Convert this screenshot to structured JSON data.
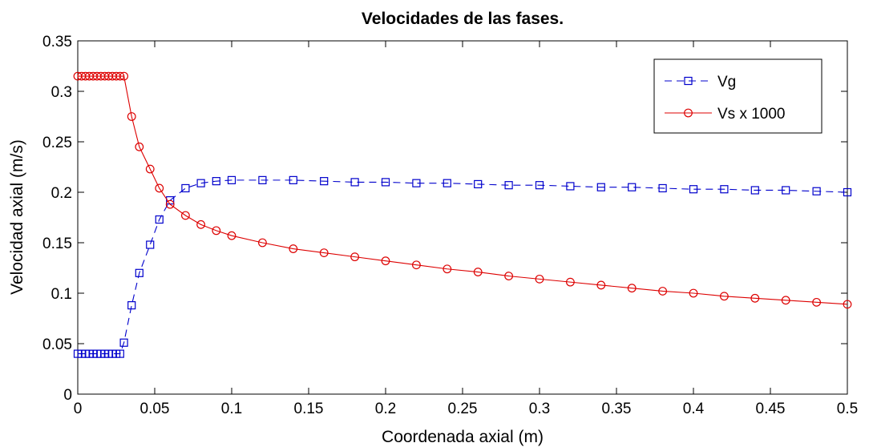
{
  "chart_data": {
    "type": "line",
    "title": "Velocidades de las fases.",
    "xlabel": "Coordenada axial (m)",
    "ylabel": "Velocidad axial (m/s)",
    "xlim": [
      0,
      0.5
    ],
    "ylim": [
      0,
      0.35
    ],
    "xticks": [
      0,
      0.05,
      0.1,
      0.15,
      0.2,
      0.25,
      0.3,
      0.35,
      0.4,
      0.45,
      0.5
    ],
    "xtick_labels": [
      "0",
      "0.05",
      "0.1",
      "0.15",
      "0.2",
      "0.25",
      "0.3",
      "0.35",
      "0.4",
      "0.45",
      "0.5"
    ],
    "yticks": [
      0,
      0.05,
      0.1,
      0.15,
      0.2,
      0.25,
      0.3,
      0.35
    ],
    "ytick_labels": [
      "0",
      "0.05",
      "0.1",
      "0.15",
      "0.2",
      "0.25",
      "0.3",
      "0.35"
    ],
    "grid": false,
    "legend_position": "top-right",
    "series": [
      {
        "name": "Vg",
        "color": "#0000cc",
        "line_style": "dashed",
        "marker": "square",
        "x": [
          0,
          0.0025,
          0.005,
          0.0075,
          0.01,
          0.0125,
          0.015,
          0.0175,
          0.02,
          0.0225,
          0.025,
          0.0275,
          0.03,
          0.035,
          0.04,
          0.047,
          0.053,
          0.06,
          0.07,
          0.08,
          0.09,
          0.1,
          0.12,
          0.14,
          0.16,
          0.18,
          0.2,
          0.22,
          0.24,
          0.26,
          0.28,
          0.3,
          0.32,
          0.34,
          0.36,
          0.38,
          0.4,
          0.42,
          0.44,
          0.46,
          0.48,
          0.5
        ],
        "y": [
          0.04,
          0.04,
          0.04,
          0.04,
          0.04,
          0.04,
          0.04,
          0.04,
          0.04,
          0.04,
          0.04,
          0.04,
          0.051,
          0.088,
          0.12,
          0.148,
          0.173,
          0.192,
          0.204,
          0.209,
          0.211,
          0.212,
          0.212,
          0.212,
          0.211,
          0.21,
          0.21,
          0.209,
          0.209,
          0.208,
          0.207,
          0.207,
          0.206,
          0.205,
          0.205,
          0.204,
          0.203,
          0.203,
          0.202,
          0.202,
          0.201,
          0.2
        ]
      },
      {
        "name": "Vs x 1000",
        "color": "#dd0000",
        "line_style": "solid",
        "marker": "circle",
        "x": [
          0,
          0.0025,
          0.005,
          0.0075,
          0.01,
          0.0125,
          0.015,
          0.0175,
          0.02,
          0.0225,
          0.025,
          0.0275,
          0.03,
          0.035,
          0.04,
          0.047,
          0.053,
          0.06,
          0.07,
          0.08,
          0.09,
          0.1,
          0.12,
          0.14,
          0.16,
          0.18,
          0.2,
          0.22,
          0.24,
          0.26,
          0.28,
          0.3,
          0.32,
          0.34,
          0.36,
          0.38,
          0.4,
          0.42,
          0.44,
          0.46,
          0.48,
          0.5
        ],
        "y": [
          0.315,
          0.315,
          0.315,
          0.315,
          0.315,
          0.315,
          0.315,
          0.315,
          0.315,
          0.315,
          0.315,
          0.315,
          0.315,
          0.275,
          0.245,
          0.223,
          0.204,
          0.188,
          0.177,
          0.168,
          0.162,
          0.157,
          0.15,
          0.144,
          0.14,
          0.136,
          0.132,
          0.128,
          0.124,
          0.121,
          0.117,
          0.114,
          0.111,
          0.108,
          0.105,
          0.102,
          0.1,
          0.097,
          0.095,
          0.093,
          0.091,
          0.089
        ]
      }
    ]
  }
}
